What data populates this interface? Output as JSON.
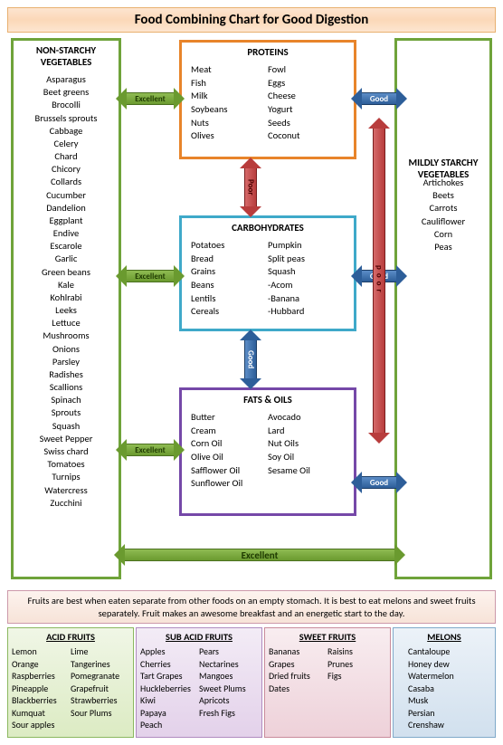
{
  "title": "Food Combining Chart for Good Digestion",
  "boxes": {
    "nonstarchy": {
      "title": "NON-STARCHY VEGETABLES",
      "items": [
        "Asparagus",
        "Beet greens",
        "Brocolli",
        "Brussels sprouts",
        "Cabbage",
        "Celery",
        "Chard",
        "Chicory",
        "Collards",
        "Cucumber",
        "Dandelion",
        "Eggplant",
        "Endive",
        "Escarole",
        "Garlic",
        "Green beans",
        "Kale",
        "Kohlrabi",
        "Leeks",
        "Lettuce",
        "Mushrooms",
        "Onions",
        "Parsley",
        "Radishes",
        "Scallions",
        "Spinach",
        "Sprouts",
        "Squash",
        "Sweet Pepper",
        "Swiss chard",
        "Tomatoes",
        "Turnips",
        "Watercress",
        "Zucchini"
      ]
    },
    "mildly": {
      "title": "MILDLY STARCHY VEGETABLES",
      "items": [
        "Artichokes",
        "Beets",
        "Carrots",
        "Cauliflower",
        "Corn",
        "Peas"
      ]
    },
    "proteins": {
      "title": "PROTEINS",
      "col1": [
        "Meat",
        "Fish",
        "Milk",
        "Soybeans",
        "Nuts",
        "Olives"
      ],
      "col2": [
        "Fowl",
        "Eggs",
        "Cheese",
        "Yogurt",
        "Seeds",
        "Coconut"
      ]
    },
    "carbs": {
      "title": "CARBOHYDRATES",
      "col1": [
        "Potatoes",
        "Bread",
        "Grains",
        "Beans",
        "Lentils",
        "Cereals"
      ],
      "col2": [
        "Pumpkin",
        "Split peas",
        "Squash",
        "-Acom",
        "-Banana",
        "-Hubbard"
      ]
    },
    "fats": {
      "title": "FATS & OILS",
      "col1": [
        "Butter",
        "Cream",
        "Corn Oil",
        "Olive Oil",
        "Safflower Oil",
        "Sunflower Oil"
      ],
      "col2": [
        "Avocado",
        "Lard",
        "Nut Oils",
        "Soy Oil",
        "Sesame Oil"
      ]
    }
  },
  "labels": {
    "excellent": "Excellent",
    "good": "Good",
    "poor": "Poor",
    "poor_v": "poor"
  },
  "fruit_note": "Fruits are best when eaten separate from other foods on an empty stomach.  It is best to eat melons and sweet fruits separately.   Fruit makes an awesome breakfast and an energetic start to the day.",
  "fruits": {
    "acid": {
      "title": "ACID FRUITS",
      "col1": [
        "Lemon",
        "Orange",
        "Raspberries",
        "Pineapple",
        "Blackberries",
        "Kumquat",
        "Sour apples"
      ],
      "col2": [
        "Lime",
        "Tangerines",
        "Pomegranate",
        "Grapefruit",
        "Strawberries",
        "Sour Plums"
      ]
    },
    "sub": {
      "title": "SUB ACID FRUITS",
      "col1": [
        "Apples",
        "Cherries",
        "Tart Grapes",
        "Huckleberries",
        "Kiwi",
        "Papaya",
        "Peach"
      ],
      "col2": [
        "Pears",
        "Nectarines",
        "Mangoes",
        "Sweet Plums",
        "Apricots",
        "Fresh Figs"
      ]
    },
    "sweet": {
      "title": "SWEET FRUITS",
      "col1": [
        "Bananas",
        "Grapes",
        "Dried fruits",
        "Dates"
      ],
      "col2": [
        "Raisins",
        "Prunes",
        "Figs"
      ]
    },
    "melon": {
      "title": "MELONS",
      "items": [
        "Cantaloupe",
        "Honey dew",
        "Watermelon",
        "Casaba",
        "Musk",
        "Persian",
        "Crenshaw"
      ]
    }
  }
}
